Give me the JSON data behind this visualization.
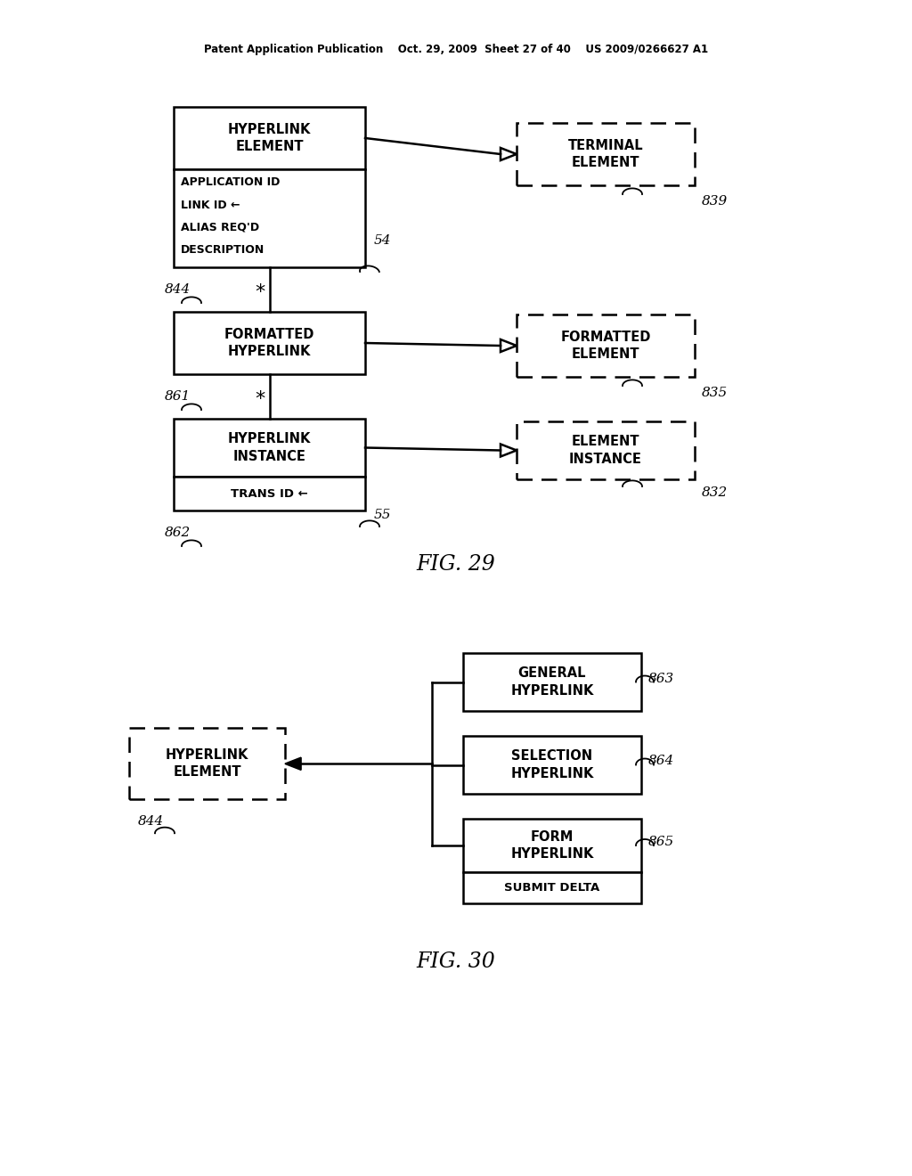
{
  "bg_color": "#ffffff",
  "header": "Patent Application Publication    Oct. 29, 2009  Sheet 27 of 40    US 2009/0266627 A1",
  "fig29_title": "FIG. 29",
  "fig30_title": "FIG. 30"
}
